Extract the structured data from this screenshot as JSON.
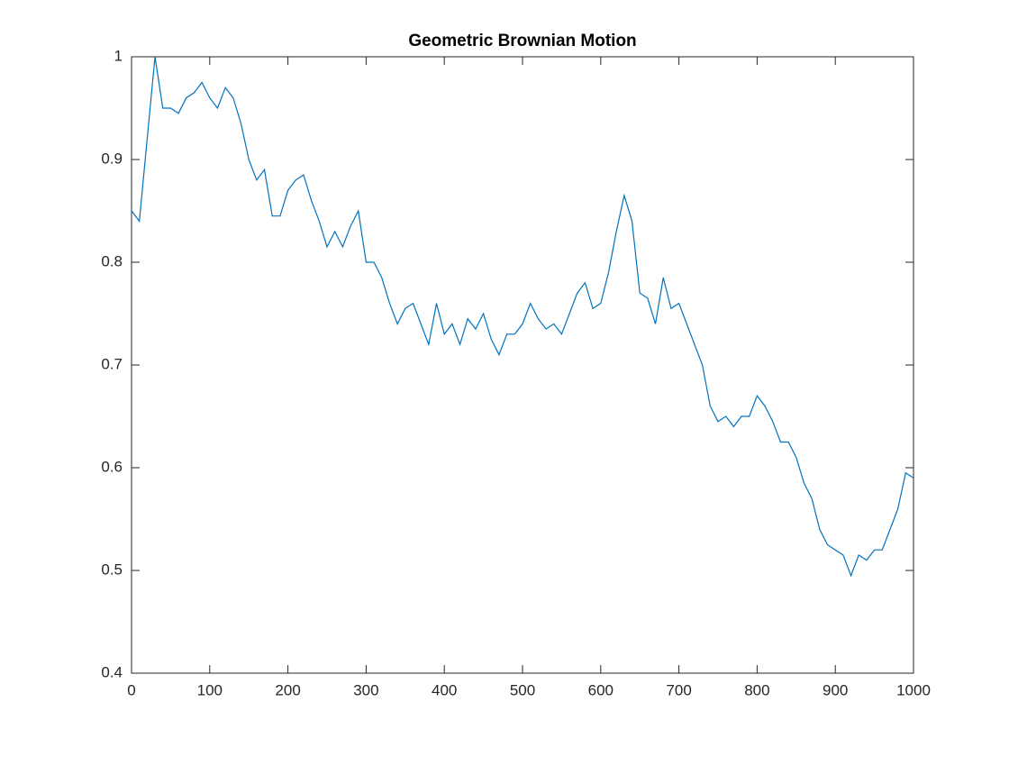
{
  "chart_data": {
    "type": "line",
    "title": "Geometric Brownian Motion",
    "x": [
      0,
      10,
      20,
      30,
      40,
      50,
      60,
      70,
      80,
      90,
      100,
      110,
      120,
      130,
      140,
      150,
      160,
      170,
      180,
      190,
      200,
      210,
      220,
      230,
      240,
      250,
      260,
      270,
      280,
      290,
      300,
      310,
      320,
      330,
      340,
      350,
      360,
      370,
      380,
      390,
      400,
      410,
      420,
      430,
      440,
      450,
      460,
      470,
      480,
      490,
      500,
      510,
      520,
      530,
      540,
      550,
      560,
      570,
      580,
      590,
      600,
      610,
      620,
      630,
      640,
      650,
      660,
      670,
      680,
      690,
      700,
      710,
      720,
      730,
      740,
      750,
      760,
      770,
      780,
      790,
      800,
      810,
      820,
      830,
      840,
      850,
      860,
      870,
      880,
      890,
      900,
      910,
      920,
      930,
      940,
      950,
      960,
      970,
      980,
      990,
      1000
    ],
    "series": [
      {
        "color": "#0072bd",
        "values": [
          0.85,
          0.84,
          0.92,
          1.0,
          0.95,
          0.95,
          0.945,
          0.96,
          0.965,
          0.975,
          0.96,
          0.95,
          0.97,
          0.96,
          0.935,
          0.9,
          0.88,
          0.89,
          0.845,
          0.845,
          0.87,
          0.88,
          0.885,
          0.86,
          0.84,
          0.815,
          0.83,
          0.815,
          0.835,
          0.85,
          0.8,
          0.8,
          0.785,
          0.76,
          0.74,
          0.755,
          0.76,
          0.74,
          0.72,
          0.76,
          0.73,
          0.74,
          0.72,
          0.745,
          0.735,
          0.75,
          0.725,
          0.71,
          0.73,
          0.73,
          0.74,
          0.76,
          0.745,
          0.735,
          0.74,
          0.73,
          0.75,
          0.77,
          0.78,
          0.755,
          0.76,
          0.79,
          0.83,
          0.865,
          0.84,
          0.77,
          0.765,
          0.74,
          0.785,
          0.755,
          0.76,
          0.74,
          0.72,
          0.7,
          0.66,
          0.645,
          0.65,
          0.64,
          0.65,
          0.65,
          0.67,
          0.66,
          0.645,
          0.625,
          0.625,
          0.61,
          0.585,
          0.57,
          0.54,
          0.525,
          0.52,
          0.515,
          0.495,
          0.515,
          0.51,
          0.52,
          0.52,
          0.54,
          0.56,
          0.595,
          0.59
        ]
      }
    ],
    "xlim": [
      0,
      1000
    ],
    "xticks": [
      0,
      100,
      200,
      300,
      400,
      500,
      600,
      700,
      800,
      900,
      1000
    ],
    "ylim": [
      0.4,
      1
    ],
    "yticks": [
      0.4,
      0.5,
      0.6,
      0.7,
      0.8,
      0.9,
      1
    ]
  }
}
